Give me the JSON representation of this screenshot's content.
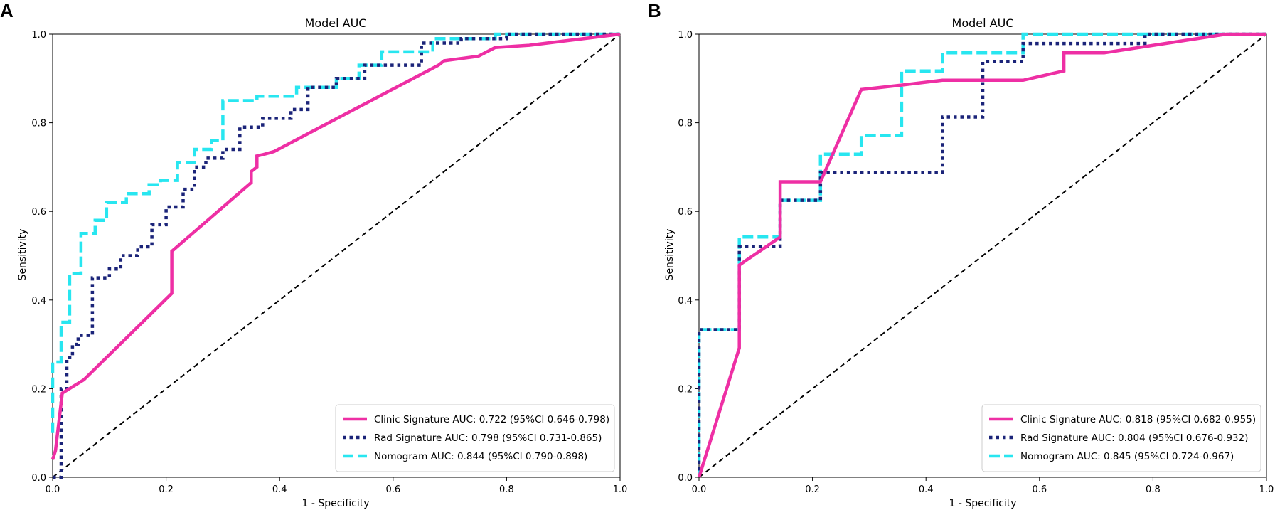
{
  "figure": {
    "panels": [
      "A",
      "B"
    ]
  },
  "chart_data": [
    {
      "panel": "A",
      "type": "line",
      "title": "Model AUC",
      "xlabel": "1 - Specificity",
      "ylabel": "Sensitivity",
      "xlim": [
        0,
        1
      ],
      "ylim": [
        0,
        1
      ],
      "xticks": [
        "0.0",
        "0.2",
        "0.4",
        "0.6",
        "0.8",
        "1.0"
      ],
      "yticks": [
        "0.0",
        "0.2",
        "0.4",
        "0.6",
        "0.8",
        "1.0"
      ],
      "legend_position": "bottom-right",
      "reference_line": {
        "x": [
          0,
          1
        ],
        "y": [
          0,
          1
        ],
        "style": "dashed",
        "color": "#000000"
      },
      "series": [
        {
          "name": "Clinic Signature AUC: 0.722 (95%CI 0.646-0.798)",
          "color": "#ee2fa4",
          "style": "solid",
          "x": [
            0.0,
            0.005,
            0.017,
            0.055,
            0.21,
            0.21,
            0.35,
            0.35,
            0.36,
            0.36,
            0.37,
            0.39,
            0.68,
            0.69,
            0.75,
            0.765,
            0.78,
            0.84,
            1.0
          ],
          "y": [
            0.04,
            0.06,
            0.19,
            0.22,
            0.415,
            0.51,
            0.665,
            0.69,
            0.7,
            0.725,
            0.728,
            0.735,
            0.93,
            0.94,
            0.95,
            0.96,
            0.97,
            0.975,
            1.0
          ]
        },
        {
          "name": "Rad Signature AUC: 0.798 (95%CI 0.731-0.865)",
          "color": "#1b2479",
          "style": "dotted",
          "x": [
            0.0,
            0.015,
            0.015,
            0.025,
            0.025,
            0.035,
            0.035,
            0.045,
            0.045,
            0.07,
            0.07,
            0.1,
            0.1,
            0.12,
            0.12,
            0.15,
            0.15,
            0.175,
            0.175,
            0.2,
            0.2,
            0.23,
            0.23,
            0.25,
            0.25,
            0.27,
            0.27,
            0.3,
            0.3,
            0.33,
            0.33,
            0.37,
            0.37,
            0.42,
            0.42,
            0.45,
            0.45,
            0.5,
            0.5,
            0.55,
            0.55,
            0.65,
            0.65,
            0.72,
            0.72,
            0.8,
            0.8,
            1.0
          ],
          "y": [
            0.0,
            0.0,
            0.2,
            0.2,
            0.27,
            0.27,
            0.3,
            0.3,
            0.32,
            0.32,
            0.45,
            0.45,
            0.47,
            0.47,
            0.5,
            0.5,
            0.52,
            0.52,
            0.57,
            0.57,
            0.61,
            0.61,
            0.65,
            0.65,
            0.7,
            0.7,
            0.72,
            0.72,
            0.74,
            0.74,
            0.79,
            0.79,
            0.81,
            0.81,
            0.83,
            0.83,
            0.88,
            0.88,
            0.9,
            0.9,
            0.93,
            0.93,
            0.98,
            0.98,
            0.99,
            0.99,
            1.0,
            1.0
          ]
        },
        {
          "name": "Nomogram AUC: 0.844 (95%CI 0.790-0.898)",
          "color": "#28e6f0",
          "style": "dashed",
          "x": [
            0.0,
            0.0,
            0.015,
            0.015,
            0.03,
            0.03,
            0.05,
            0.05,
            0.075,
            0.075,
            0.095,
            0.095,
            0.13,
            0.13,
            0.17,
            0.17,
            0.19,
            0.19,
            0.22,
            0.22,
            0.25,
            0.25,
            0.28,
            0.28,
            0.3,
            0.3,
            0.36,
            0.36,
            0.43,
            0.43,
            0.5,
            0.5,
            0.54,
            0.54,
            0.58,
            0.58,
            0.67,
            0.67,
            0.78,
            0.78,
            1.0
          ],
          "y": [
            0.1,
            0.26,
            0.26,
            0.35,
            0.35,
            0.46,
            0.46,
            0.55,
            0.55,
            0.58,
            0.58,
            0.62,
            0.62,
            0.64,
            0.64,
            0.66,
            0.66,
            0.67,
            0.67,
            0.71,
            0.71,
            0.74,
            0.74,
            0.76,
            0.76,
            0.85,
            0.85,
            0.86,
            0.86,
            0.88,
            0.88,
            0.9,
            0.9,
            0.93,
            0.93,
            0.96,
            0.96,
            0.99,
            0.99,
            1.0,
            1.0
          ]
        }
      ]
    },
    {
      "panel": "B",
      "type": "line",
      "title": "Model AUC",
      "xlabel": "1 - Specificity",
      "ylabel": "Sensitivity",
      "xlim": [
        0,
        1
      ],
      "ylim": [
        0,
        1
      ],
      "xticks": [
        "0.0",
        "0.2",
        "0.4",
        "0.6",
        "0.8",
        "1.0"
      ],
      "yticks": [
        "0.0",
        "0.2",
        "0.4",
        "0.6",
        "0.8",
        "1.0"
      ],
      "legend_position": "bottom-right",
      "reference_line": {
        "x": [
          0,
          1
        ],
        "y": [
          0,
          1
        ],
        "style": "dashed",
        "color": "#000000"
      },
      "series": [
        {
          "name": "Clinic Signature AUC: 0.818 (95%CI 0.682-0.955)",
          "color": "#ee2fa4",
          "style": "solid",
          "x": [
            0.0,
            0.071,
            0.071,
            0.143,
            0.143,
            0.214,
            0.286,
            0.357,
            0.429,
            0.571,
            0.643,
            0.643,
            0.714,
            0.929,
            1.0
          ],
          "y": [
            0.0,
            0.292,
            0.479,
            0.542,
            0.667,
            0.667,
            0.875,
            0.885,
            0.896,
            0.896,
            0.917,
            0.958,
            0.958,
            1.0,
            1.0
          ]
        },
        {
          "name": "Rad Signature AUC: 0.804 (95%CI 0.676-0.932)",
          "color": "#1b2479",
          "style": "dotted",
          "x": [
            0.0,
            0.0,
            0.071,
            0.071,
            0.143,
            0.143,
            0.214,
            0.214,
            0.429,
            0.429,
            0.5,
            0.5,
            0.571,
            0.571,
            0.786,
            0.786,
            1.0
          ],
          "y": [
            0.0,
            0.333,
            0.333,
            0.521,
            0.521,
            0.625,
            0.625,
            0.688,
            0.688,
            0.813,
            0.813,
            0.938,
            0.938,
            0.979,
            0.979,
            1.0,
            1.0
          ]
        },
        {
          "name": "Nomogram AUC: 0.845 (95%CI 0.724-0.967)",
          "color": "#28e6f0",
          "style": "dashed",
          "x": [
            0.0,
            0.0,
            0.071,
            0.071,
            0.143,
            0.143,
            0.214,
            0.214,
            0.286,
            0.286,
            0.357,
            0.357,
            0.429,
            0.429,
            0.571,
            0.571,
            1.0
          ],
          "y": [
            0.0,
            0.333,
            0.333,
            0.542,
            0.542,
            0.625,
            0.625,
            0.729,
            0.729,
            0.771,
            0.771,
            0.917,
            0.917,
            0.958,
            0.958,
            1.0,
            1.0
          ]
        }
      ]
    }
  ]
}
